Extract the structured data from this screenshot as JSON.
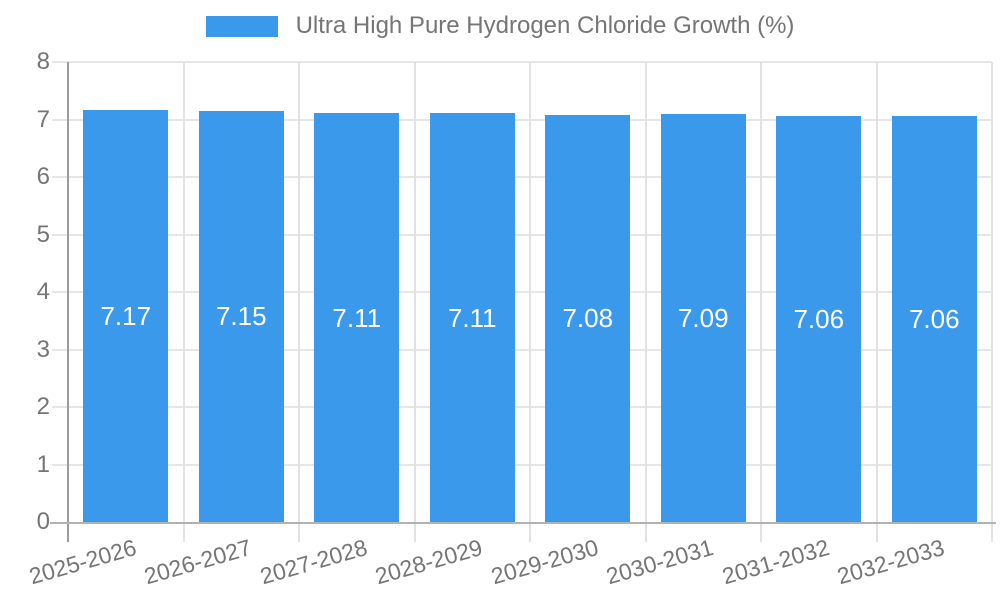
{
  "legend": {
    "label": "Ultra High Pure Hydrogen Chloride Growth (%)"
  },
  "colors": {
    "bar": "#3b99ec",
    "bar_label_text": "#ffffff",
    "axis_text": "#757575",
    "grid_line": "#e6e6e6",
    "y_axis_line": "#9c9c9c",
    "x_axis_line": "#b2b2b2"
  },
  "chart_data": {
    "type": "bar",
    "title": "Ultra High Pure Hydrogen Chloride Growth (%)",
    "categories": [
      "2025-2026",
      "2026-2027",
      "2027-2028",
      "2028-2029",
      "2029-2030",
      "2030-2031",
      "2031-2032",
      "2032-2033"
    ],
    "values": [
      7.17,
      7.15,
      7.11,
      7.11,
      7.08,
      7.09,
      7.06,
      7.06
    ],
    "value_labels": [
      "7.17",
      "7.15",
      "7.11",
      "7.11",
      "7.08",
      "7.09",
      "7.06",
      "7.06"
    ],
    "xlabel": "",
    "ylabel": "",
    "ylim": [
      0,
      8
    ],
    "y_ticks": [
      0,
      1,
      2,
      3,
      4,
      5,
      6,
      7,
      8
    ],
    "grid": true,
    "legend_position": "top",
    "bar_color": "#3b99ec",
    "x_label_rotation_deg": -16
  }
}
